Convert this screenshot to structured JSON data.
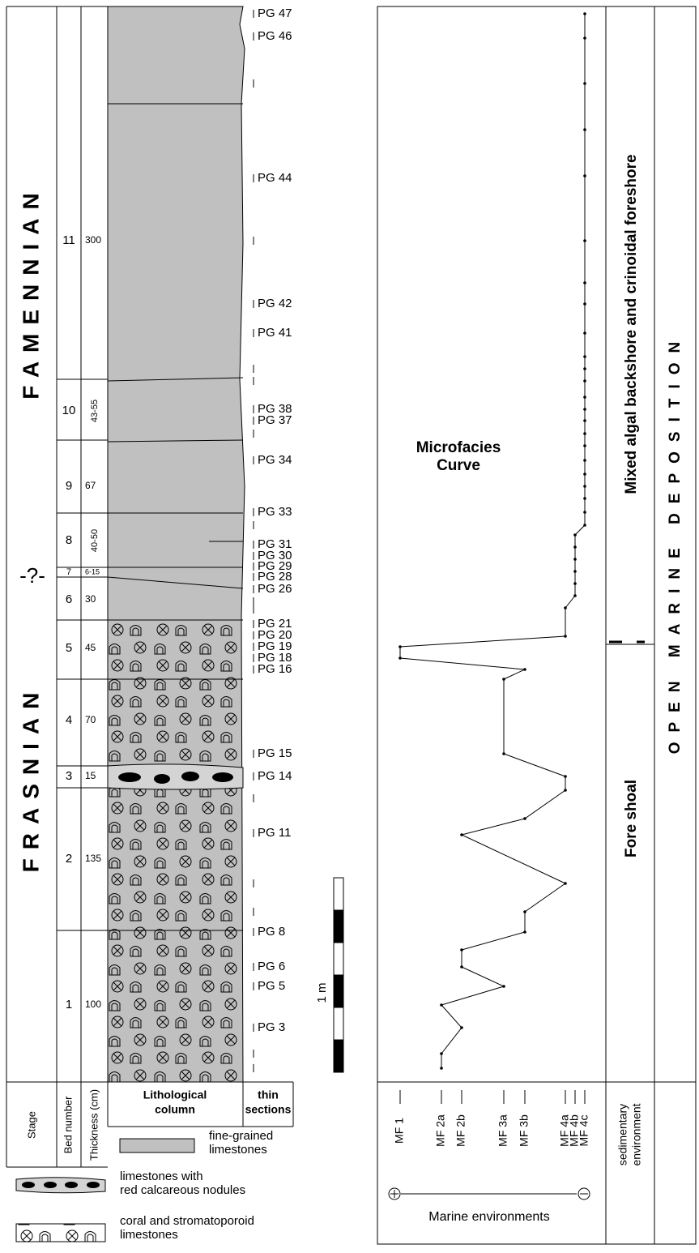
{
  "stages": [
    "FAMENNIAN",
    "FRASNIAN"
  ],
  "stage_boundary": "-?-",
  "beds": [
    {
      "number": 11,
      "thickness": 300
    },
    {
      "number": 10,
      "thickness": "43-55"
    },
    {
      "number": 9,
      "thickness": 67
    },
    {
      "number": 8,
      "thickness": "40-50"
    },
    {
      "number": 7,
      "thickness": "6-15"
    },
    {
      "number": 6,
      "thickness": 30
    },
    {
      "number": 5,
      "thickness": 45
    },
    {
      "number": 4,
      "thickness": 70
    },
    {
      "number": 3,
      "thickness": 15
    },
    {
      "number": 2,
      "thickness": 135
    },
    {
      "number": 1,
      "thickness": 100
    }
  ],
  "thin_sections": [
    "PG 47",
    "PG 46",
    null,
    "PG 44",
    null,
    "PG 42",
    "PG 41",
    null,
    null,
    "PG 38",
    "PG 37",
    null,
    "PG 34",
    "PG 33",
    null,
    "PG 31",
    "PG 30",
    "PG 29",
    "PG 28",
    "PG 26",
    null,
    null,
    "PG 21",
    "PG 20",
    "PG 19",
    "PG 18",
    "PG 16",
    "PG 15",
    "PG 14",
    null,
    "PG 11",
    null,
    null,
    "PG 8",
    "PG 6",
    "PG 5",
    "PG 3",
    null,
    null
  ],
  "scale_bar": "1 m",
  "header": {
    "stage": "Stage",
    "bed_number": "Bed number",
    "thickness": "Thickness (cm)",
    "lithology": [
      "Lithological",
      "column"
    ],
    "thin_sections": [
      "thin",
      "sections"
    ]
  },
  "legend": [
    {
      "lines": [
        "fine-grained",
        "limestones"
      ]
    },
    {
      "lines": [
        "limestones with",
        "red calcareous nodules"
      ]
    },
    {
      "lines": [
        "coral and stromatoporoid",
        "limestones"
      ]
    }
  ],
  "microfacies_curve": {
    "title": [
      "Microfacies",
      "Curve"
    ],
    "categories": [
      "MF 1",
      "MF 2a",
      "MF 2b",
      "MF 3a",
      "MF 3b",
      "MF 4a",
      "MF 4b",
      "MF 4c"
    ],
    "samples": [
      "MF 4c",
      "MF 4c",
      "MF 4c",
      "MF 4c",
      "MF 4c",
      "MF 4c",
      "MF 4c",
      "MF 4c",
      "MF 4c",
      "MF 4c",
      "MF 4c",
      "MF 4c",
      "MF 4c",
      "MF 4c",
      "MF 4c",
      "MF 4c",
      "MF 4c",
      "MF 4c",
      "MF 4c",
      "MF 4c",
      "MF 4c",
      "MF 4c",
      "MF 4c",
      "MF 4b",
      "MF 4b",
      "MF 4b",
      "MF 4b",
      "MF 4b",
      "MF 4b",
      "MF 4a",
      "MF 4a",
      "MF 1",
      "MF 1",
      "MF 3b",
      "MF 3a",
      "MF 3a",
      "MF 4a",
      "MF 4a",
      "MF 3b",
      "MF 2b",
      "MF 4a",
      "MF 3b",
      "MF 3b",
      "MF 2b",
      "MF 2b",
      "MF 3a",
      "MF 2a",
      "MF 2b",
      "MF 2a",
      "MF 2a"
    ],
    "axis_label": "Marine environments"
  },
  "sedimentary_environment": {
    "label": [
      "sedimentary",
      "environment"
    ],
    "zones": [
      "Fore shoal",
      "Mixed algal backshore and crinoidal foreshore"
    ],
    "overall": "OPEN MARINE DEPOSITION"
  }
}
